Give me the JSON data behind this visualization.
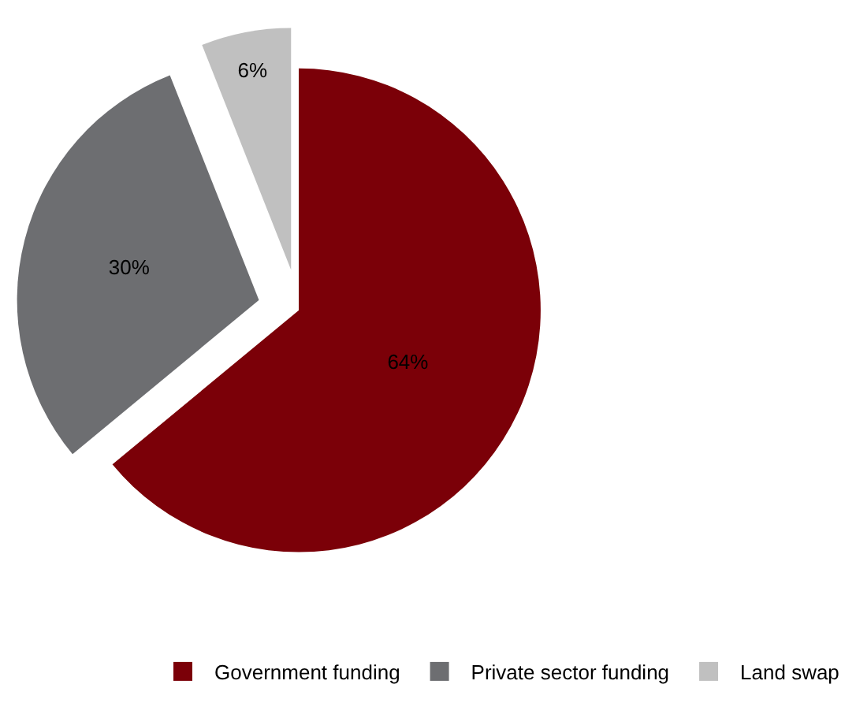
{
  "chart_data": {
    "type": "pie",
    "categories": [
      "Government funding",
      "Private sector funding",
      "Land swap"
    ],
    "values": [
      64,
      30,
      6
    ],
    "colors": [
      "#7b0008",
      "#6d6e71",
      "#c0c0c0"
    ],
    "value_labels": [
      "64%",
      "30%",
      "6%"
    ],
    "legend": "bottom right"
  }
}
